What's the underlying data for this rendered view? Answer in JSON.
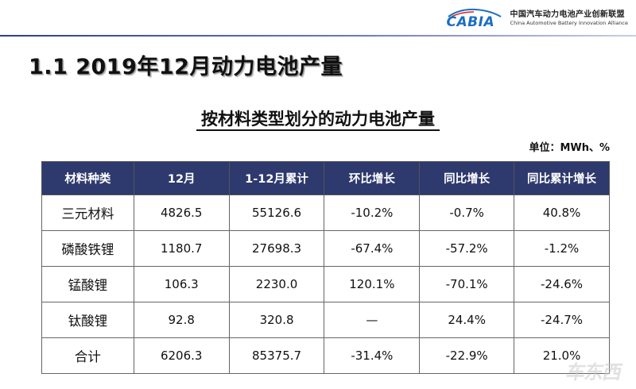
{
  "header": {
    "logo_word": "CABIA",
    "org_cn": "中国汽车动力电池产业创新联盟",
    "org_en": "China Automotive Battery Innovation Alliance",
    "accent": "#2e3a6e"
  },
  "page_title": "1.1  2019年12月动力电池产量",
  "table_title": "按材料类型划分的动力电池产量",
  "unit": "单位：MWh、%",
  "table": {
    "headers": [
      "材料种类",
      "12月",
      "1-12月累计",
      "环比增长",
      "同比增长",
      "同比累计增长"
    ],
    "rows": [
      [
        "三元材料",
        "4826.5",
        "55126.6",
        "-10.2%",
        "-0.7%",
        "40.8%"
      ],
      [
        "磷酸铁锂",
        "1180.7",
        "27698.3",
        "-67.4%",
        "-57.2%",
        "-1.2%"
      ],
      [
        "锰酸锂",
        "106.3",
        "2230.0",
        "120.1%",
        "-70.1%",
        "-24.6%"
      ],
      [
        "钛酸锂",
        "92.8",
        "320.8",
        "—",
        "24.4%",
        "-24.7%"
      ],
      [
        "合计",
        "6206.3",
        "85375.7",
        "-31.4%",
        "-22.9%",
        "21.0%"
      ]
    ]
  },
  "watermark": "车东西"
}
